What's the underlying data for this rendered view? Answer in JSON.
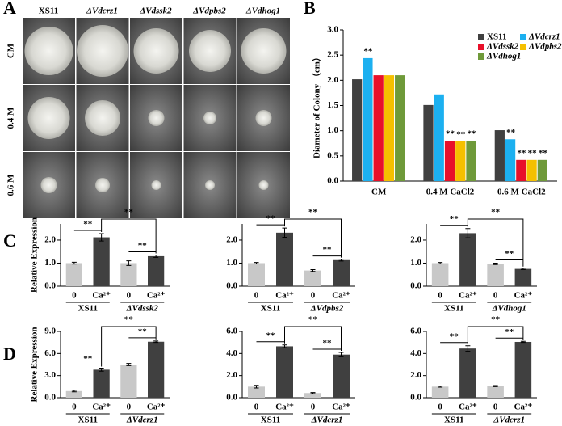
{
  "panel_labels": [
    "A",
    "B",
    "C",
    "D"
  ],
  "photo_grid": {
    "columns": [
      "XS11",
      "ΔVdcrz1",
      "ΔVdssk2",
      "ΔVdpbs2",
      "ΔVdhog1"
    ],
    "rows": [
      "CM",
      "0.4 M",
      "0.6 M"
    ]
  },
  "chart_data": [
    {
      "type": "bar",
      "ylabel": "Diameter of Colony （cm）",
      "categories": [
        "CM",
        "0.4 M CaCl2",
        "0.6 M CaCl2"
      ],
      "ylim": [
        0,
        3
      ],
      "yticks": [
        {
          "value": 0,
          "label": "0.0"
        },
        {
          "value": 0.5,
          "label": "0.5"
        },
        {
          "value": 1,
          "label": "1.0"
        },
        {
          "value": 1.5,
          "label": "1.5"
        },
        {
          "value": 2,
          "label": "2.0"
        },
        {
          "value": 2.5,
          "label": "2.5"
        },
        {
          "value": 3,
          "label": "3.0"
        }
      ],
      "series": [
        {
          "name": "XS11",
          "color": "#404040",
          "values": [
            2.02,
            1.51,
            1.01
          ],
          "significance": [
            null,
            null,
            null
          ]
        },
        {
          "name": "ΔVdcrz1",
          "color": "#1cb0f0",
          "values": [
            2.44,
            1.72,
            0.83
          ],
          "significance": [
            "**",
            null,
            "**"
          ]
        },
        {
          "name": "ΔVdssk2",
          "color": "#e8102a",
          "values": [
            2.1,
            0.8,
            0.42
          ],
          "significance": [
            null,
            "**",
            "**"
          ]
        },
        {
          "name": "ΔVdpbs2",
          "color": "#f5c000",
          "values": [
            2.1,
            0.79,
            0.42
          ],
          "significance": [
            null,
            "**",
            "**"
          ]
        },
        {
          "name": "ΔVdhog1",
          "color": "#6f9a3a",
          "values": [
            2.1,
            0.8,
            0.42
          ],
          "significance": [
            null,
            "**",
            "**"
          ]
        }
      ]
    },
    {
      "type": "bar",
      "ylabel": "Relative Expression",
      "categories": [
        "0",
        "Ca²⁺",
        "0",
        "Ca²⁺"
      ],
      "groups": [
        "XS11",
        "ΔVdssk2"
      ],
      "values": [
        1.0,
        2.12,
        1.0,
        1.3
      ],
      "errors": [
        0.04,
        0.16,
        0.1,
        0.05
      ],
      "colors": [
        "#c8c8c8",
        "#404040",
        "#c8c8c8",
        "#404040"
      ],
      "ylim": [
        0,
        2.7
      ],
      "yticks": [
        {
          "value": 0,
          "label": "0.0"
        },
        {
          "value": 1,
          "label": "1.0"
        },
        {
          "value": 2,
          "label": "2.0"
        }
      ],
      "significance": [
        "**",
        "**",
        "**"
      ]
    },
    {
      "type": "bar",
      "categories": [
        "0",
        "Ca²⁺",
        "0",
        "Ca²⁺"
      ],
      "groups": [
        "XS11",
        "ΔVdpbs2"
      ],
      "values": [
        1.0,
        2.32,
        0.68,
        1.13
      ],
      "errors": [
        0.03,
        0.2,
        0.04,
        0.04
      ],
      "colors": [
        "#c8c8c8",
        "#404040",
        "#c8c8c8",
        "#404040"
      ],
      "ylim": [
        0,
        2.7
      ],
      "yticks": [
        {
          "value": 0,
          "label": "0.0"
        },
        {
          "value": 1,
          "label": "1.0"
        },
        {
          "value": 2,
          "label": "2.0"
        }
      ],
      "significance": [
        "**",
        "**",
        "**"
      ]
    },
    {
      "type": "bar",
      "categories": [
        "0",
        "Ca²⁺",
        "0",
        "Ca²⁺"
      ],
      "groups": [
        "XS11",
        "ΔVdhog1"
      ],
      "values": [
        1.0,
        2.3,
        0.97,
        0.75
      ],
      "errors": [
        0.03,
        0.2,
        0.03,
        0.03
      ],
      "colors": [
        "#c8c8c8",
        "#404040",
        "#c8c8c8",
        "#404040"
      ],
      "ylim": [
        0,
        2.7
      ],
      "yticks": [
        {
          "value": 0,
          "label": "0.0"
        },
        {
          "value": 1,
          "label": "1.0"
        },
        {
          "value": 2,
          "label": "2.0"
        }
      ],
      "significance": [
        "**",
        "**",
        "**"
      ]
    },
    {
      "type": "bar",
      "ylabel": "Relative Expression",
      "categories": [
        "0",
        "Ca²⁺",
        "0",
        "Ca²⁺"
      ],
      "groups": [
        "XS11",
        "ΔVdcrz1"
      ],
      "values": [
        0.9,
        3.8,
        4.5,
        7.6
      ],
      "errors": [
        0.1,
        0.2,
        0.15,
        0.1
      ],
      "colors": [
        "#c8c8c8",
        "#404040",
        "#c8c8c8",
        "#404040"
      ],
      "ylim": [
        0,
        9
      ],
      "yticks": [
        {
          "value": 0,
          "label": "0.0"
        },
        {
          "value": 3,
          "label": "3.0"
        },
        {
          "value": 6,
          "label": "6.0"
        },
        {
          "value": 9,
          "label": "9.0"
        }
      ],
      "significance": [
        "**",
        "**",
        "**"
      ]
    },
    {
      "type": "bar",
      "categories": [
        "0",
        "Ca²⁺",
        "0",
        "Ca²⁺"
      ],
      "groups": [
        "XS11",
        "ΔVdcrz1"
      ],
      "values": [
        1.0,
        4.65,
        0.42,
        3.9
      ],
      "errors": [
        0.12,
        0.12,
        0.05,
        0.2
      ],
      "colors": [
        "#c8c8c8",
        "#404040",
        "#c8c8c8",
        "#404040"
      ],
      "ylim": [
        0,
        6
      ],
      "yticks": [
        {
          "value": 0,
          "label": "0.0"
        },
        {
          "value": 2,
          "label": "2.0"
        },
        {
          "value": 4,
          "label": "4.0"
        },
        {
          "value": 6,
          "label": "6.0"
        }
      ],
      "significance": [
        "**",
        "**",
        "**"
      ]
    },
    {
      "type": "bar",
      "categories": [
        "0",
        "Ca²⁺",
        "0",
        "Ca²⁺"
      ],
      "groups": [
        "XS11",
        "ΔVdcrz1"
      ],
      "values": [
        1.0,
        4.45,
        1.05,
        5.05
      ],
      "errors": [
        0.05,
        0.25,
        0.05,
        0.05
      ],
      "colors": [
        "#c8c8c8",
        "#404040",
        "#c8c8c8",
        "#404040"
      ],
      "ylim": [
        0,
        6
      ],
      "yticks": [
        {
          "value": 0,
          "label": "0.0"
        },
        {
          "value": 2,
          "label": "2.0"
        },
        {
          "value": 4,
          "label": "4.0"
        },
        {
          "value": 6,
          "label": "6.0"
        }
      ],
      "significance": [
        "**",
        "**",
        "**"
      ]
    }
  ]
}
